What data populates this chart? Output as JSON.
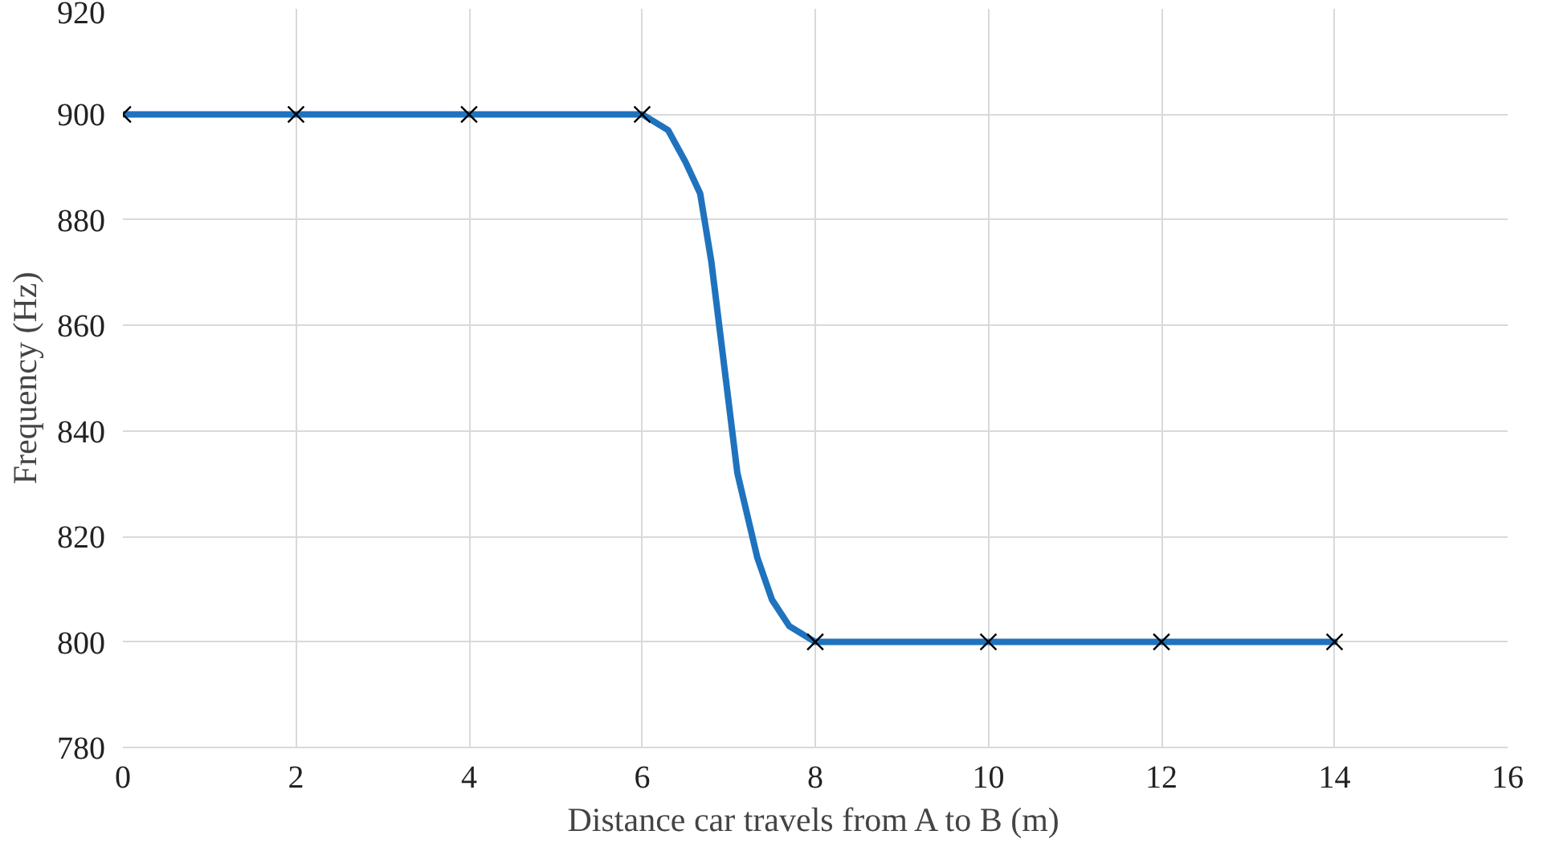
{
  "chart_data": {
    "type": "line",
    "xlabel": "Distance car travels from A to B (m)",
    "ylabel": "Frequency (Hz)",
    "xlim": [
      0,
      16
    ],
    "xticks": [
      0,
      2,
      4,
      6,
      8,
      10,
      12,
      14,
      16
    ],
    "ylim": [
      780,
      920
    ],
    "yticks": [
      780,
      800,
      820,
      840,
      860,
      880,
      900,
      920
    ],
    "grid": true,
    "series": [
      {
        "color": "#1f73be",
        "marker": "none",
        "x": [
          0,
          2,
          4,
          6,
          6.3,
          6.5,
          6.67,
          6.8,
          6.95,
          7.1,
          7.33,
          7.5,
          7.7,
          8,
          10,
          12,
          14
        ],
        "values": [
          900,
          900,
          900,
          900,
          897,
          891,
          885,
          872,
          852,
          832,
          816,
          808,
          803,
          800,
          800,
          800,
          800
        ]
      },
      {
        "type": "scatter",
        "color": "#000000",
        "marker": "cross",
        "x": [
          0,
          2,
          4,
          6,
          8,
          10,
          12,
          14
        ],
        "values": [
          900,
          900,
          900,
          900,
          800,
          800,
          800,
          800
        ]
      }
    ]
  }
}
